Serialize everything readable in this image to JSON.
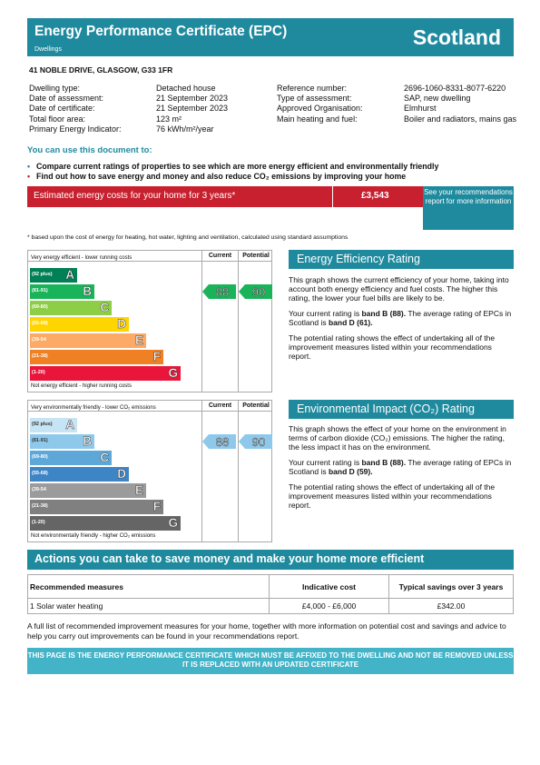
{
  "header": {
    "title": "Energy Performance Certificate (EPC)",
    "subtitle": "Dwellings",
    "country": "Scotland"
  },
  "address": "41 NOBLE DRIVE, GLASGOW, G33 1FR",
  "details_left": [
    {
      "label": "Dwelling type:",
      "value": "Detached house"
    },
    {
      "label": "Date of assessment:",
      "value": "21 September 2023"
    },
    {
      "label": "Date of certificate:",
      "value": "21 September 2023"
    },
    {
      "label": "Total floor area:",
      "value": "123 m²"
    },
    {
      "label": "Primary Energy Indicator:",
      "value": "76 kWh/m²/year"
    }
  ],
  "details_right": [
    {
      "label": "Reference number:",
      "value": "2696-1060-8331-8077-6220"
    },
    {
      "label": "Type of assessment:",
      "value": "SAP, new dwelling"
    },
    {
      "label": "Approved Organisation:",
      "value": "Elmhurst"
    },
    {
      "label": "Main heating and fuel:",
      "value": "Boiler and radiators, mains gas"
    }
  ],
  "use_title": "You can use this document to:",
  "bullets": [
    "Compare current ratings of properties to see which are more energy efficient and environmentally friendly",
    "Find out how to save energy and money and also reduce CO₂ emissions by improving your home"
  ],
  "cost": {
    "label": "Estimated energy costs for your home for 3 years*",
    "value": "£3,543",
    "see_link": "See your recommendations report for more information"
  },
  "footnote": "* based upon the cost of energy for heating, hot water, lighting and ventilation, calculated using standard assumptions",
  "colors": {
    "brand": "#1f8a9e",
    "cost_red": "#c8202e",
    "ee_bands": [
      "#008054",
      "#19b459",
      "#8dce46",
      "#ffd500",
      "#fcaa65",
      "#ef8023",
      "#e9153b"
    ],
    "ei_bands": [
      "#c7e4f5",
      "#8ec9ec",
      "#5da8d8",
      "#3e85c5",
      "#9b9b9b",
      "#808080",
      "#656565"
    ]
  },
  "ee_chart": {
    "current_label": "Current",
    "potential_label": "Potential",
    "top_text": "Very energy efficient - lower running costs",
    "bottom_text": "Not energy efficient - higher running costs",
    "bands": [
      {
        "range": "(92 plus)",
        "letter": "A"
      },
      {
        "range": "(81-91)",
        "letter": "B"
      },
      {
        "range": "(69-80)",
        "letter": "C"
      },
      {
        "range": "(55-68)",
        "letter": "D"
      },
      {
        "range": "(39-54",
        "letter": "E"
      },
      {
        "range": "(21-38)",
        "letter": "F"
      },
      {
        "range": "(1-20)",
        "letter": "G"
      }
    ],
    "current": 88,
    "current_band": "B",
    "potential": 90,
    "potential_band": "B"
  },
  "ei_chart": {
    "current_label": "Current",
    "potential_label": "Potential",
    "top_text": "Very environmentally friendly - lower CO₂ emissions",
    "bottom_text": "Not environmentally friendly - higher CO₂ emissions",
    "bands": [
      {
        "range": "(92 plus)",
        "letter": "A"
      },
      {
        "range": "(81-91)",
        "letter": "B"
      },
      {
        "range": "(69-80)",
        "letter": "C"
      },
      {
        "range": "(55-68)",
        "letter": "D"
      },
      {
        "range": "(39-54",
        "letter": "E"
      },
      {
        "range": "(21-38)",
        "letter": "F"
      },
      {
        "range": "(1-20)",
        "letter": "G"
      }
    ],
    "current": 88,
    "current_band": "B",
    "potential": 90,
    "potential_band": "B"
  },
  "ee_panel": {
    "title": "Energy Efficiency Rating",
    "p1": "This graph shows the current efficiency of your home, taking into account both energy efficiency and fuel costs. The higher this rating, the lower your fuel bills are likely to be.",
    "p2_pre": "Your current rating is ",
    "p2_bold1": "band B (88).",
    "p2_mid": " The average rating of EPCs in Scotland is ",
    "p2_bold2": "band D (61).",
    "p3": "The potential rating shows the effect of undertaking all of the improvement measures listed within your recommendations report."
  },
  "ei_panel": {
    "title": "Environmental Impact (CO₂) Rating",
    "p1": "This graph shows the effect of your home on the environment in terms of carbon dioxide (CO₂) emissions. The higher the rating, the less impact it has on the environment.",
    "p2_pre": "Your current rating is ",
    "p2_bold1": "band B (88).",
    "p2_mid": " The average rating of EPCs in Scotland is ",
    "p2_bold2": "band D (59).",
    "p3": "The potential rating shows the effect of undertaking all of the improvement measures listed within your recommendations report."
  },
  "actions": {
    "title": "Actions you can take to save money and make your home more efficient",
    "headers": [
      "Recommended measures",
      "Indicative cost",
      "Typical savings over 3 years"
    ],
    "rows": [
      [
        "1 Solar water heating",
        "£4,000 - £6,000",
        "£342.00"
      ]
    ]
  },
  "full_list": "A full list of recommended improvement measures for your home, together with more information on potential cost and savings and advice to help you carry out improvements can be found in your recommendations report.",
  "warning": "THIS PAGE IS THE ENERGY PERFORMANCE CERTIFICATE WHICH MUST BE AFFIXED TO THE DWELLING AND NOT BE REMOVED UNLESS IT IS REPLACED WITH AN UPDATED CERTIFICATE"
}
